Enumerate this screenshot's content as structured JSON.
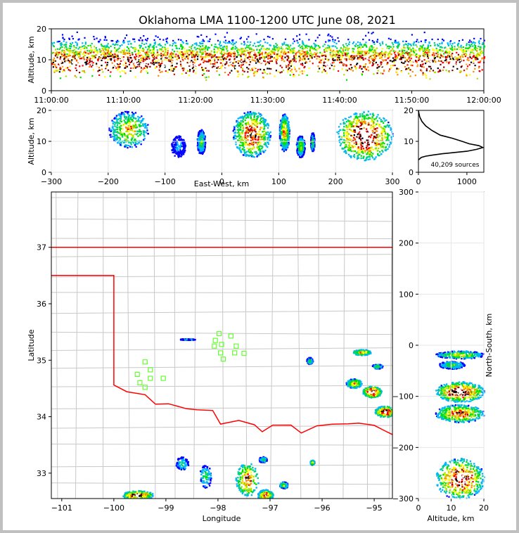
{
  "title": "Oklahoma LMA 1100-1200 UTC June 08, 2021",
  "colors": {
    "density_scale": [
      "#0000ff",
      "#00b4ff",
      "#00d084",
      "#00e000",
      "#b0e000",
      "#ffff00",
      "#ff8c00",
      "#ff0000",
      "#8b0000",
      "#000000",
      "#ffffff"
    ],
    "state_border": "#ff0000",
    "county_lines": "#c8c8c8",
    "stations": "#66ff33",
    "axes": "#000000"
  },
  "chart_data": [
    {
      "id": "time_height",
      "type": "heatmap",
      "xlabel": "",
      "ylabel": "Altitude, km",
      "x_ticks": [
        "11:00:00",
        "11:10:00",
        "11:20:00",
        "11:30:00",
        "11:40:00",
        "11:50:00",
        "12:00:00"
      ],
      "y_ticks": [
        0,
        10,
        20
      ],
      "xlim": [
        "11:00:00",
        "12:00:00"
      ],
      "ylim": [
        0,
        20
      ],
      "description_values": {
        "main_altitude_band_km": [
          5,
          13
        ],
        "max_altitude_km": 20
      }
    },
    {
      "id": "ew_altitude",
      "type": "heatmap",
      "xlabel": "East-West, km",
      "ylabel": "Altitude, km",
      "x_ticks": [
        -300,
        -200,
        -100,
        0,
        100,
        200,
        300
      ],
      "y_ticks": [
        0,
        10,
        20
      ],
      "xlim": [
        -300,
        300
      ],
      "ylim": [
        0,
        20
      ],
      "clusters": [
        {
          "x_range": [
            -200,
            -130
          ],
          "alt_range": [
            8,
            20
          ],
          "intensity": 0.55
        },
        {
          "x_range": [
            -90,
            -65
          ],
          "alt_range": [
            5,
            12
          ],
          "intensity": 0.15
        },
        {
          "x_range": [
            -45,
            -30
          ],
          "alt_range": [
            6,
            14
          ],
          "intensity": 0.35
        },
        {
          "x_range": [
            18,
            85
          ],
          "alt_range": [
            5,
            20
          ],
          "intensity": 0.8
        },
        {
          "x_range": [
            100,
            118
          ],
          "alt_range": [
            7,
            19
          ],
          "intensity": 0.6
        },
        {
          "x_range": [
            130,
            145
          ],
          "alt_range": [
            5,
            12
          ],
          "intensity": 0.4
        },
        {
          "x_range": [
            155,
            162
          ],
          "alt_range": [
            7,
            13
          ],
          "intensity": 0.35
        },
        {
          "x_range": [
            200,
            300
          ],
          "alt_range": [
            4,
            20
          ],
          "intensity": 1.0
        }
      ]
    },
    {
      "id": "altitude_histogram",
      "type": "line",
      "annotation": "40,209 sources",
      "x_ticks": [
        0,
        1000
      ],
      "y_ticks": [
        0,
        10,
        20
      ],
      "xlim": [
        0,
        1350
      ],
      "ylim": [
        0,
        20
      ],
      "points": [
        [
          0,
          4
        ],
        [
          60,
          4.8
        ],
        [
          150,
          5.2
        ],
        [
          300,
          5.6
        ],
        [
          500,
          6
        ],
        [
          750,
          6.4
        ],
        [
          1000,
          6.8
        ],
        [
          1200,
          7.4
        ],
        [
          1330,
          8
        ],
        [
          1250,
          8.6
        ],
        [
          1050,
          9.2
        ],
        [
          900,
          10
        ],
        [
          700,
          11
        ],
        [
          450,
          12
        ],
        [
          280,
          13.5
        ],
        [
          150,
          15
        ],
        [
          70,
          16.5
        ],
        [
          25,
          18
        ],
        [
          5,
          19.5
        ],
        [
          0,
          20
        ]
      ]
    },
    {
      "id": "plan_view",
      "type": "heatmap",
      "xlabel": "Longitude",
      "ylabel": "Latitude",
      "x_ticks": [
        -101,
        -100,
        -99,
        -98,
        -97,
        -96,
        -95
      ],
      "y_ticks": [
        33,
        34,
        35,
        36,
        37
      ],
      "xlim": [
        -101.2,
        -94.65
      ],
      "ylim": [
        32.55,
        37.98
      ],
      "clusters": [
        {
          "lon": -99.55,
          "lat": 32.62,
          "spread": [
            0.3,
            0.08
          ],
          "intensity": 0.9
        },
        {
          "lon": -98.7,
          "lat": 33.18,
          "spread": [
            0.12,
            0.12
          ],
          "intensity": 0.25
        },
        {
          "lon": -98.25,
          "lat": 32.95,
          "spread": [
            0.12,
            0.2
          ],
          "intensity": 0.3
        },
        {
          "lon": -97.45,
          "lat": 32.9,
          "spread": [
            0.22,
            0.3
          ],
          "intensity": 0.7
        },
        {
          "lon": -97.1,
          "lat": 32.62,
          "spread": [
            0.15,
            0.1
          ],
          "intensity": 0.75
        },
        {
          "lon": -96.75,
          "lat": 32.8,
          "spread": [
            0.08,
            0.06
          ],
          "intensity": 0.45
        },
        {
          "lon": -97.15,
          "lat": 33.25,
          "spread": [
            0.08,
            0.05
          ],
          "intensity": 0.3
        },
        {
          "lon": -96.25,
          "lat": 35.0,
          "spread": [
            0.06,
            0.06
          ],
          "intensity": 0.3
        },
        {
          "lon": -95.25,
          "lat": 35.15,
          "spread": [
            0.18,
            0.05
          ],
          "intensity": 0.6
        },
        {
          "lon": -94.95,
          "lat": 34.9,
          "spread": [
            0.1,
            0.04
          ],
          "intensity": 0.35
        },
        {
          "lon": -95.4,
          "lat": 34.6,
          "spread": [
            0.15,
            0.08
          ],
          "intensity": 0.6
        },
        {
          "lon": -95.05,
          "lat": 34.45,
          "spread": [
            0.18,
            0.1
          ],
          "intensity": 1.0
        },
        {
          "lon": -94.8,
          "lat": 34.1,
          "spread": [
            0.2,
            0.1
          ],
          "intensity": 0.85
        },
        {
          "lon": -96.2,
          "lat": 33.2,
          "spread": [
            0.04,
            0.04
          ],
          "intensity": 0.6
        },
        {
          "lon": -98.6,
          "lat": 35.38,
          "spread": [
            0.15,
            0.01
          ],
          "intensity": 0.2
        }
      ],
      "stations": [
        [
          -99.4,
          34.97
        ],
        [
          -99.3,
          34.83
        ],
        [
          -99.55,
          34.75
        ],
        [
          -99.3,
          34.68
        ],
        [
          -99.5,
          34.6
        ],
        [
          -99.4,
          34.52
        ],
        [
          -99.05,
          34.68
        ],
        [
          -97.98,
          35.47
        ],
        [
          -98.05,
          35.35
        ],
        [
          -98.07,
          35.25
        ],
        [
          -97.93,
          35.28
        ],
        [
          -97.75,
          35.43
        ],
        [
          -97.65,
          35.25
        ],
        [
          -97.68,
          35.13
        ],
        [
          -97.5,
          35.12
        ],
        [
          -97.95,
          35.13
        ],
        [
          -97.9,
          35.02
        ]
      ]
    },
    {
      "id": "altitude_ns",
      "type": "heatmap",
      "xlabel": "Altitude, km",
      "ylabel": "North-South, km",
      "x_ticks": [
        0,
        10,
        20
      ],
      "y_ticks": [
        -300,
        -200,
        -100,
        0,
        100,
        200,
        300
      ],
      "xlim": [
        0,
        20
      ],
      "ylim": [
        -300,
        300
      ],
      "clusters": [
        {
          "ns_range": [
            -25,
            -10
          ],
          "alt_range": [
            5,
            20
          ],
          "intensity": 0.5
        },
        {
          "ns_range": [
            -45,
            -30
          ],
          "alt_range": [
            6,
            14
          ],
          "intensity": 0.35
        },
        {
          "ns_range": [
            -110,
            -70
          ],
          "alt_range": [
            5,
            20
          ],
          "intensity": 1.0
        },
        {
          "ns_range": [
            -150,
            -115
          ],
          "alt_range": [
            5,
            20
          ],
          "intensity": 0.75
        },
        {
          "ns_range": [
            -300,
            -220
          ],
          "alt_range": [
            5,
            20
          ],
          "intensity": 0.95
        }
      ]
    }
  ]
}
